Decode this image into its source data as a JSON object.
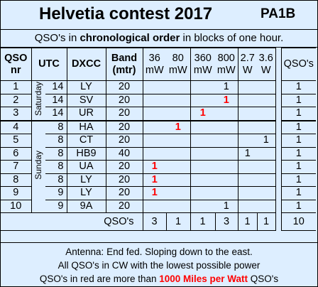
{
  "header": {
    "title": "Helvetia contest 2017",
    "callsign": "PA1B"
  },
  "subtitle": {
    "prefix": "QSO's in ",
    "bold": "chronological order",
    "suffix": " in blocks of one hour."
  },
  "columns": {
    "qso": "QSO",
    "nr": "nr",
    "utc": "UTC",
    "dxcc": "DXCC",
    "band": "Band",
    "mtr": "(mtr)",
    "powers": [
      {
        "value": "36",
        "unit": "mW"
      },
      {
        "value": "80",
        "unit": "mW"
      },
      {
        "value": "360",
        "unit": "mW"
      },
      {
        "value": "800",
        "unit": "mW"
      },
      {
        "value": "2.7",
        "unit": "W"
      },
      {
        "value": "3.6",
        "unit": "W"
      }
    ],
    "qsos": "QSO's"
  },
  "days": {
    "saturday": "Saturday",
    "sunday": "Sunday"
  },
  "rows": [
    {
      "nr": "1",
      "utc": "14",
      "dxcc": "LY",
      "band": "20",
      "p": [
        "",
        "",
        "",
        "1",
        "",
        ""
      ],
      "red": [
        false,
        false,
        false,
        false,
        false,
        false
      ],
      "qsos": "1"
    },
    {
      "nr": "2",
      "utc": "14",
      "dxcc": "SV",
      "band": "20",
      "p": [
        "",
        "",
        "",
        "1",
        "",
        ""
      ],
      "red": [
        false,
        false,
        false,
        true,
        false,
        false
      ],
      "qsos": "1"
    },
    {
      "nr": "3",
      "utc": "14",
      "dxcc": "UR",
      "band": "20",
      "p": [
        "",
        "",
        "1",
        "",
        "",
        ""
      ],
      "red": [
        false,
        false,
        true,
        false,
        false,
        false
      ],
      "qsos": "1"
    },
    {
      "nr": "4",
      "utc": "8",
      "dxcc": "HA",
      "band": "20",
      "p": [
        "",
        "1",
        "",
        "",
        "",
        ""
      ],
      "red": [
        false,
        true,
        false,
        false,
        false,
        false
      ],
      "qsos": "1"
    },
    {
      "nr": "5",
      "utc": "8",
      "dxcc": "CT",
      "band": "20",
      "p": [
        "",
        "",
        "",
        "",
        "",
        "1"
      ],
      "red": [
        false,
        false,
        false,
        false,
        false,
        false
      ],
      "qsos": "1"
    },
    {
      "nr": "6",
      "utc": "8",
      "dxcc": "HB9",
      "band": "40",
      "p": [
        "",
        "",
        "",
        "",
        "1",
        ""
      ],
      "red": [
        false,
        false,
        false,
        false,
        false,
        false
      ],
      "qsos": "1"
    },
    {
      "nr": "7",
      "utc": "8",
      "dxcc": "UA",
      "band": "20",
      "p": [
        "1",
        "",
        "",
        "",
        "",
        ""
      ],
      "red": [
        true,
        false,
        false,
        false,
        false,
        false
      ],
      "qsos": "1"
    },
    {
      "nr": "8",
      "utc": "8",
      "dxcc": "LY",
      "band": "20",
      "p": [
        "1",
        "",
        "",
        "",
        "",
        ""
      ],
      "red": [
        true,
        false,
        false,
        false,
        false,
        false
      ],
      "qsos": "1"
    },
    {
      "nr": "9",
      "utc": "9",
      "dxcc": "LY",
      "band": "20",
      "p": [
        "1",
        "",
        "",
        "",
        "",
        ""
      ],
      "red": [
        true,
        false,
        false,
        false,
        false,
        false
      ],
      "qsos": "1"
    },
    {
      "nr": "10",
      "utc": "9",
      "dxcc": "9A",
      "band": "20",
      "p": [
        "",
        "",
        "",
        "1",
        "",
        ""
      ],
      "red": [
        false,
        false,
        false,
        false,
        false,
        false
      ],
      "qsos": "1"
    }
  ],
  "totals": {
    "label": "QSO's",
    "values": [
      "3",
      "1",
      "1",
      "3",
      "1",
      "1"
    ],
    "total": "10"
  },
  "footer": {
    "line1": "Antenna: End fed.  Sloping down to the east.",
    "line2": "All QSO's in CW with the lowest possible power",
    "line3_prefix": "QSO's in red are more than ",
    "line3_red": "1000 Miles per Watt",
    "line3_suffix": " QSO's"
  },
  "colors": {
    "background": "#ddeeff",
    "highlight": "#ff0000",
    "border": "#000000"
  }
}
